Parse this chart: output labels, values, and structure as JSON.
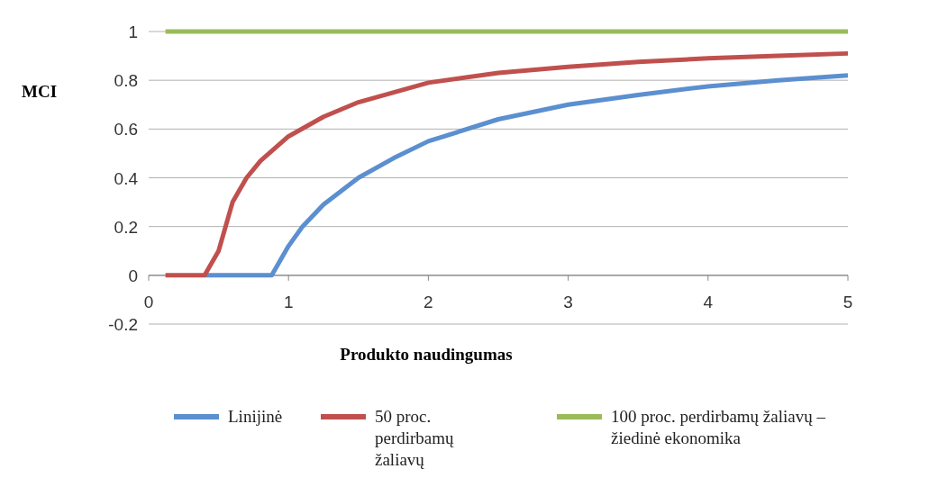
{
  "chart_data": {
    "type": "line",
    "xlabel": "Produkto naudingumas",
    "ylabel": "MCI",
    "xlim": [
      0,
      5
    ],
    "ylim": [
      -0.2,
      1
    ],
    "xticks": [
      0,
      1,
      2,
      3,
      4,
      5
    ],
    "yticks": [
      -0.2,
      0,
      0.2,
      0.4,
      0.6,
      0.8,
      1
    ],
    "grid": "y",
    "legend": "bottom",
    "marker": "none",
    "line_style": "solid",
    "series": [
      {
        "name": "Linijinė",
        "color": "#5b8fd0",
        "x": [
          0.4,
          0.88,
          1,
          1.1,
          1.25,
          1.5,
          1.75,
          2,
          2.5,
          3,
          3.5,
          4,
          4.5,
          5
        ],
        "values": [
          0,
          0,
          0.12,
          0.2,
          0.29,
          0.4,
          0.48,
          0.55,
          0.64,
          0.7,
          0.74,
          0.775,
          0.8,
          0.82
        ]
      },
      {
        "name": "50 proc. perdirbamų žaliavų",
        "color": "#c0504d",
        "x": [
          0.12,
          0.4,
          0.5,
          0.6,
          0.7,
          0.8,
          1,
          1.25,
          1.5,
          2,
          2.5,
          3,
          3.5,
          4,
          4.5,
          5
        ],
        "values": [
          0,
          0,
          0.1,
          0.3,
          0.4,
          0.47,
          0.57,
          0.65,
          0.71,
          0.79,
          0.83,
          0.855,
          0.875,
          0.89,
          0.9,
          0.91
        ]
      },
      {
        "name": "100 proc. perdirbamų žaliavų – žiedinė ekonomika",
        "color": "#9bbb59",
        "x": [
          0.12,
          5
        ],
        "values": [
          1,
          1
        ]
      }
    ]
  }
}
